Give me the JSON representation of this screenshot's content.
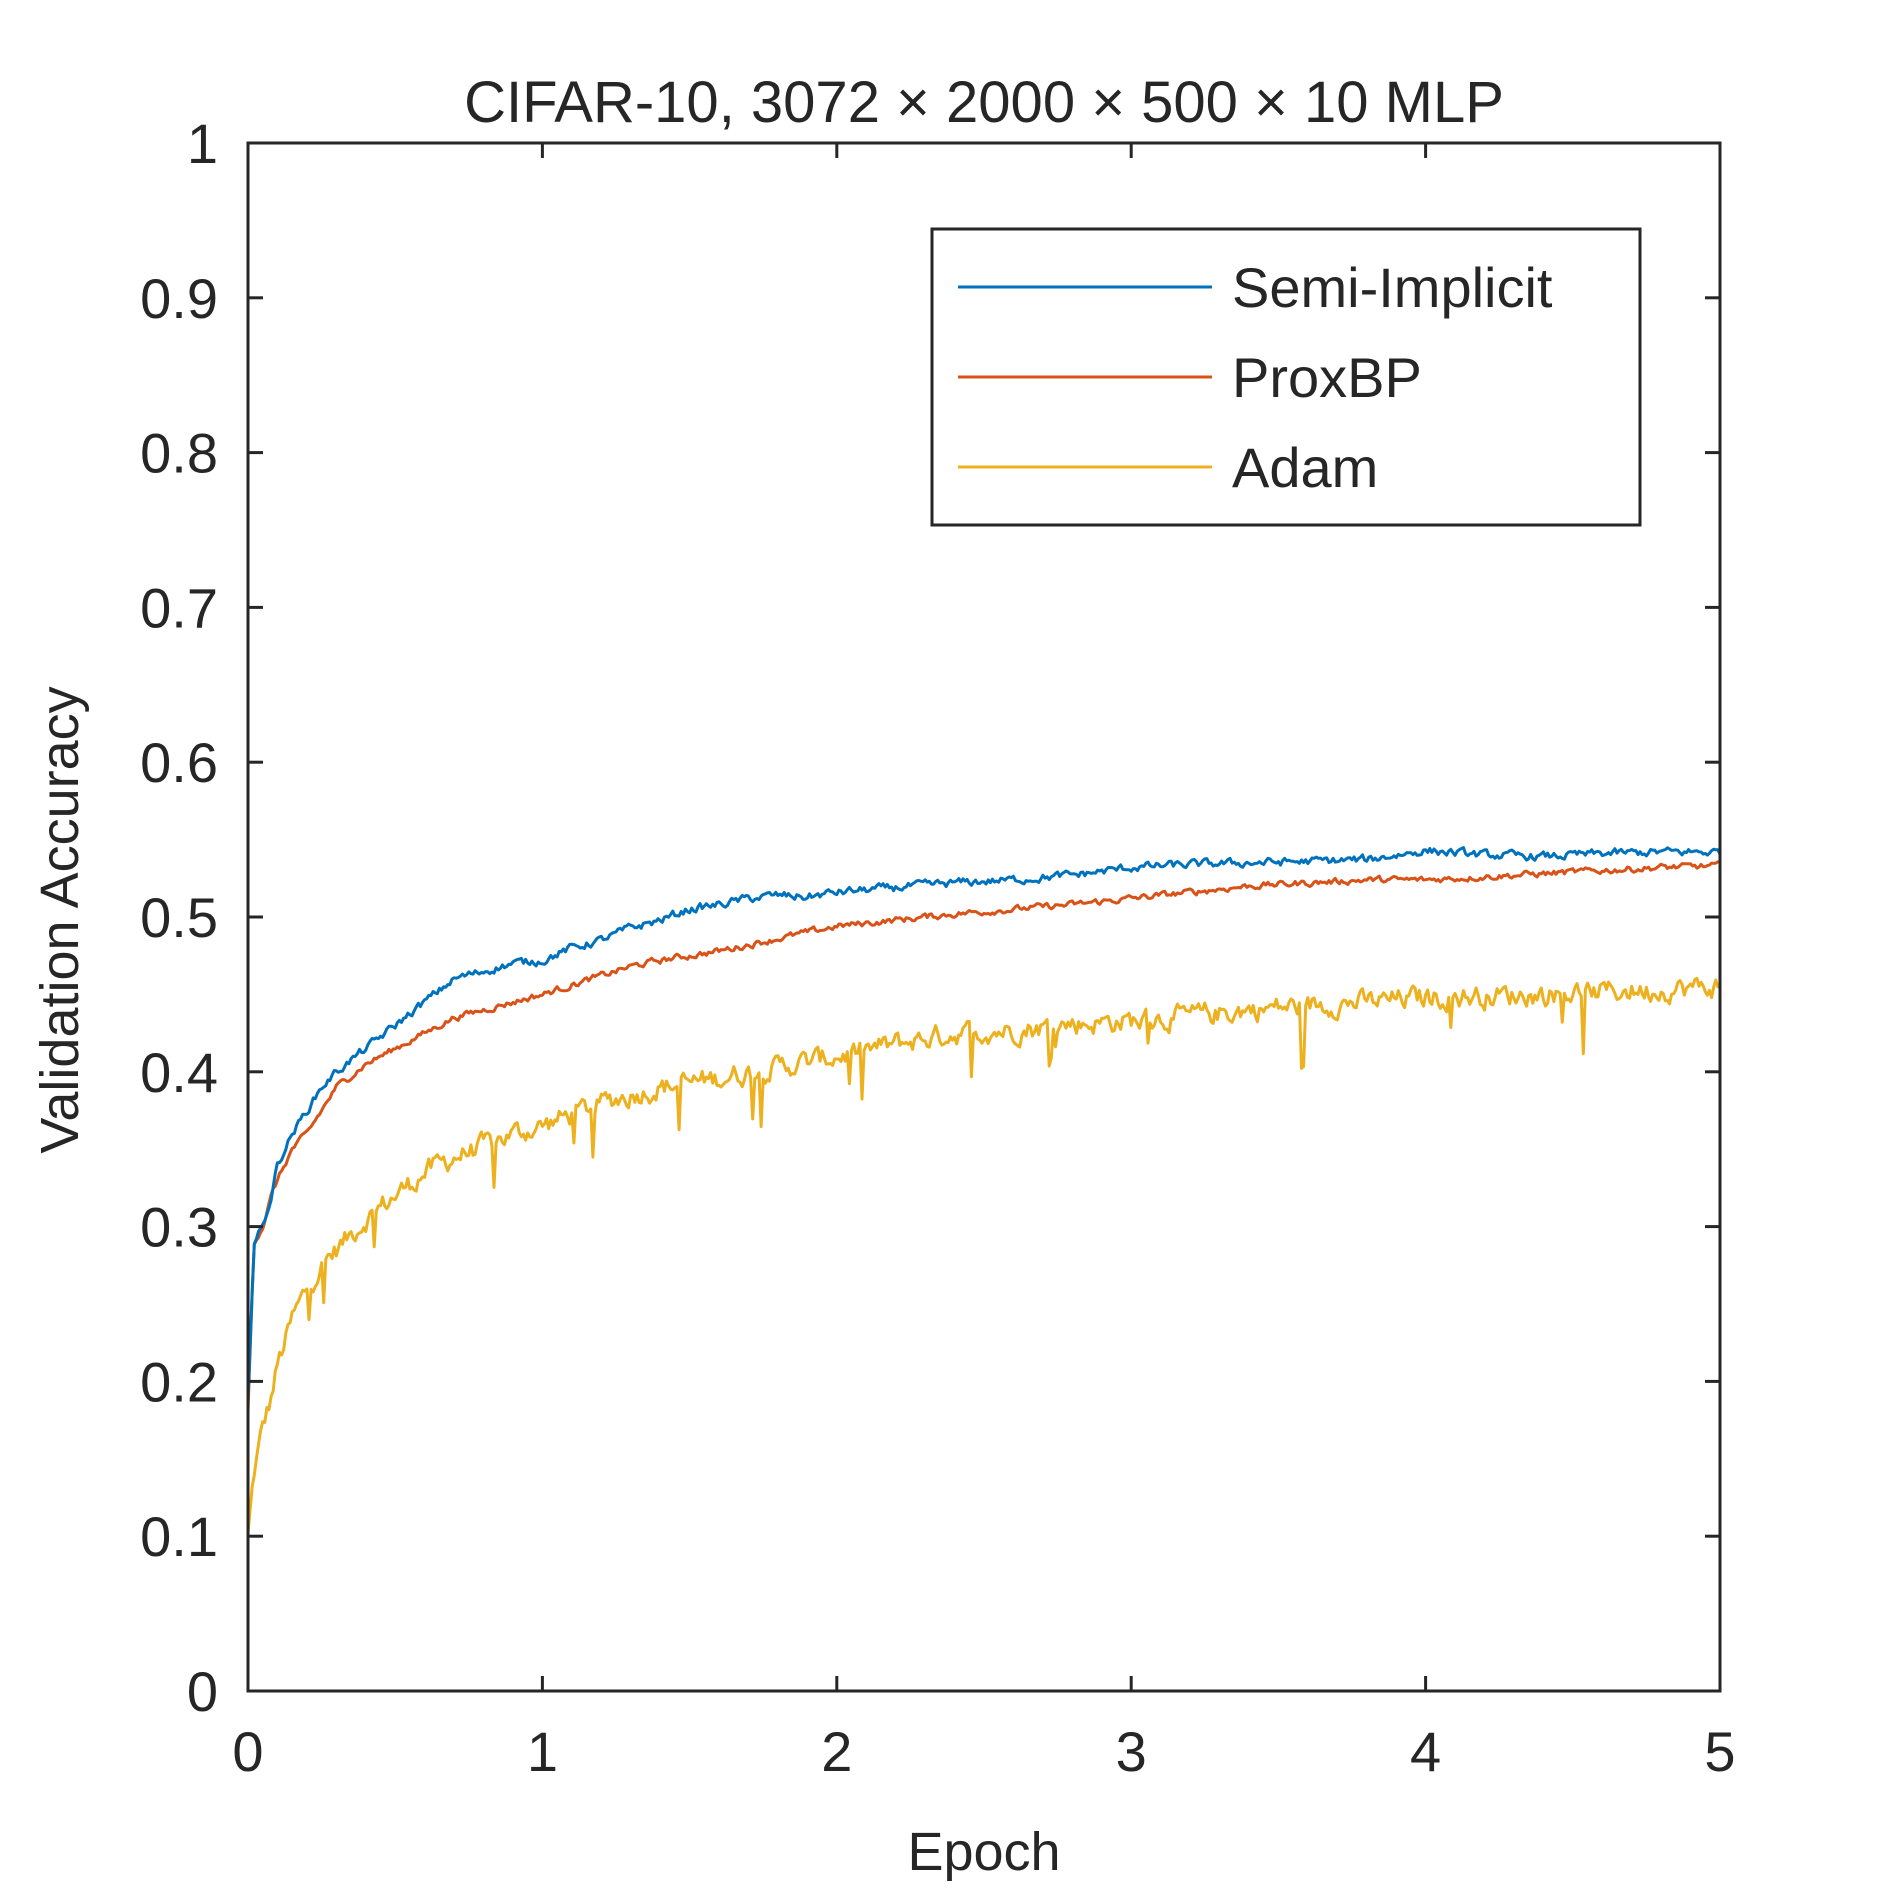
{
  "chart_data": {
    "type": "line",
    "title": "CIFAR-10, 3072 × 2000 × 500 × 10 MLP",
    "xlabel": "Epoch",
    "ylabel": "Validation Accuracy",
    "xlim": [
      0,
      5
    ],
    "ylim": [
      0,
      1
    ],
    "xticks": [
      0,
      1,
      2,
      3,
      4,
      5
    ],
    "xtick_labels": [
      "0",
      "1",
      "2",
      "3",
      "4",
      "5"
    ],
    "yticks": [
      0,
      0.1,
      0.2,
      0.3,
      0.4,
      0.5,
      0.6,
      0.7,
      0.8,
      0.9,
      1
    ],
    "ytick_labels": [
      "0",
      "0.1",
      "0.2",
      "0.3",
      "0.4",
      "0.5",
      "0.6",
      "0.7",
      "0.8",
      "0.9",
      "1"
    ],
    "grid": false,
    "legend_position": "top-right",
    "series": [
      {
        "name": "Semi-Implicit",
        "color": "#0072BD",
        "x": [
          0,
          0.02,
          0.05,
          0.08,
          0.1,
          0.15,
          0.2,
          0.25,
          0.3,
          0.4,
          0.5,
          0.6,
          0.7,
          0.8,
          0.9,
          1.0,
          1.1,
          1.2,
          1.3,
          1.4,
          1.5,
          1.6,
          1.7,
          1.8,
          1.9,
          2.0,
          2.2,
          2.4,
          2.6,
          2.8,
          3.0,
          3.2,
          3.4,
          3.6,
          3.8,
          4.0,
          4.2,
          4.4,
          4.6,
          4.8,
          5.0
        ],
        "y": [
          0.19,
          0.29,
          0.3,
          0.32,
          0.34,
          0.36,
          0.375,
          0.39,
          0.4,
          0.415,
          0.43,
          0.445,
          0.46,
          0.465,
          0.47,
          0.472,
          0.48,
          0.485,
          0.493,
          0.498,
          0.505,
          0.508,
          0.512,
          0.514,
          0.513,
          0.516,
          0.519,
          0.522,
          0.524,
          0.527,
          0.532,
          0.534,
          0.535,
          0.536,
          0.537,
          0.543,
          0.54,
          0.539,
          0.541,
          0.542,
          0.542
        ]
      },
      {
        "name": "ProxBP",
        "color": "#D95319",
        "x": [
          0,
          0.02,
          0.05,
          0.08,
          0.1,
          0.15,
          0.2,
          0.25,
          0.3,
          0.4,
          0.5,
          0.6,
          0.7,
          0.8,
          0.9,
          1.0,
          1.1,
          1.2,
          1.3,
          1.4,
          1.5,
          1.6,
          1.7,
          1.8,
          1.9,
          2.0,
          2.2,
          2.4,
          2.6,
          2.8,
          3.0,
          3.2,
          3.4,
          3.6,
          3.8,
          4.0,
          4.2,
          4.4,
          4.6,
          4.8,
          5.0
        ],
        "y": [
          0.18,
          0.29,
          0.3,
          0.32,
          0.33,
          0.35,
          0.36,
          0.375,
          0.39,
          0.405,
          0.415,
          0.425,
          0.435,
          0.44,
          0.445,
          0.45,
          0.456,
          0.462,
          0.468,
          0.472,
          0.475,
          0.478,
          0.482,
          0.486,
          0.49,
          0.494,
          0.498,
          0.502,
          0.505,
          0.508,
          0.512,
          0.516,
          0.52,
          0.522,
          0.524,
          0.524,
          0.526,
          0.528,
          0.53,
          0.532,
          0.533
        ]
      },
      {
        "name": "Adam",
        "color": "#EDB120",
        "x": [
          0,
          0.02,
          0.05,
          0.08,
          0.1,
          0.15,
          0.2,
          0.25,
          0.3,
          0.35,
          0.4,
          0.5,
          0.6,
          0.7,
          0.8,
          0.9,
          1.0,
          1.2,
          1.4,
          1.6,
          1.8,
          2.0,
          2.2,
          2.4,
          2.6,
          2.8,
          3.0,
          3.2,
          3.4,
          3.6,
          3.8,
          4.0,
          4.2,
          4.4,
          4.6,
          4.8,
          5.0
        ],
        "y": [
          0.1,
          0.14,
          0.17,
          0.19,
          0.21,
          0.24,
          0.26,
          0.275,
          0.285,
          0.295,
          0.305,
          0.32,
          0.335,
          0.345,
          0.352,
          0.36,
          0.365,
          0.38,
          0.39,
          0.396,
          0.403,
          0.41,
          0.418,
          0.425,
          0.427,
          0.431,
          0.433,
          0.436,
          0.44,
          0.443,
          0.445,
          0.448,
          0.449,
          0.45,
          0.452,
          0.453,
          0.455
        ]
      }
    ]
  }
}
